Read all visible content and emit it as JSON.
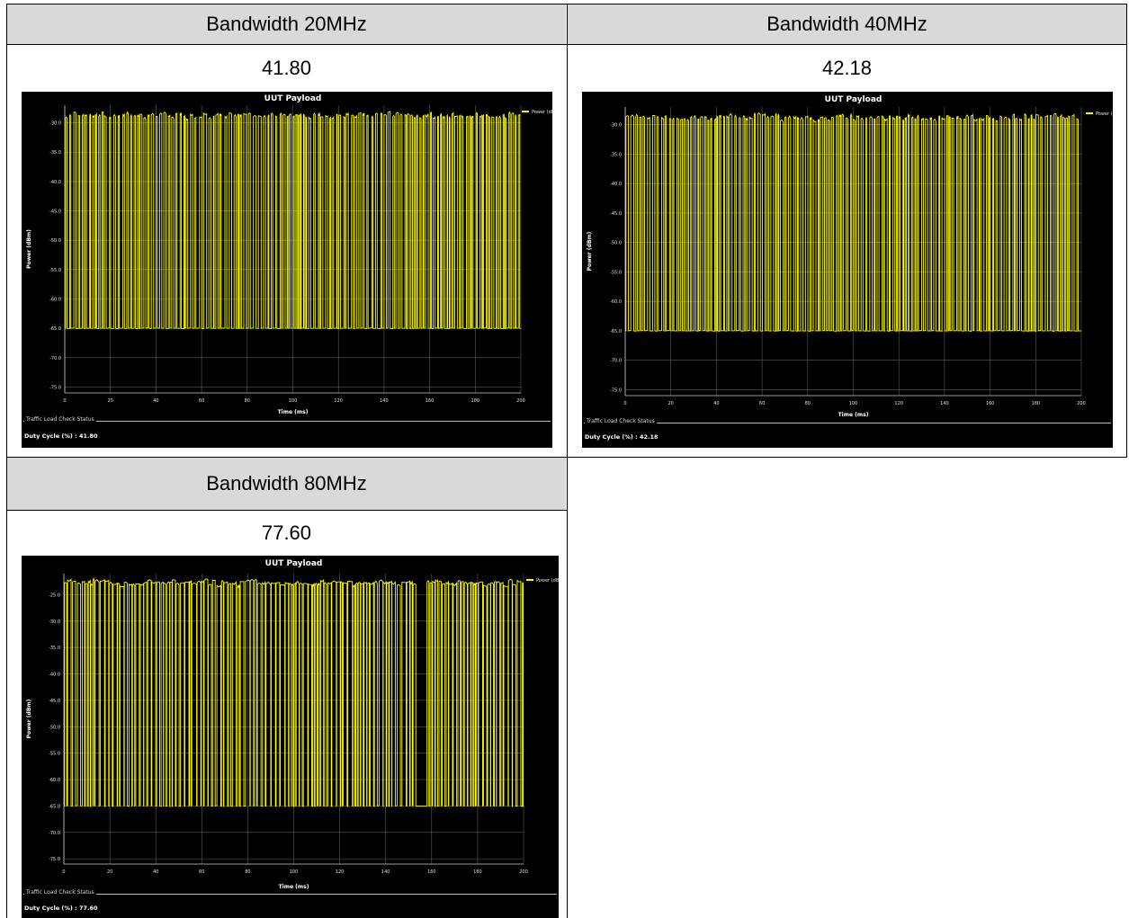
{
  "cells": [
    {
      "header": "Bandwidth 20MHz",
      "value": "41.80",
      "chart": {
        "title": "UUT Payload",
        "legend": "Power (dBm)",
        "ylabel": "Power (dBm)",
        "xlabel": "Time (ms)",
        "status_group": "Traffic Load Check Status",
        "duty_text": "Duty Cycle (%) : 41.80"
      }
    },
    {
      "header": "Bandwidth 40MHz",
      "value": "42.18",
      "chart": {
        "title": "UUT Payload",
        "legend": "Power (dBm)",
        "ylabel": "Power (dBm)",
        "xlabel": "Time (ms)",
        "status_group": "Traffic Load Check Status",
        "duty_text": "Duty Cycle (%) : 42.18"
      }
    },
    {
      "header": "Bandwidth 80MHz",
      "value": "77.60",
      "chart": {
        "title": "UUT Payload",
        "legend": "Power (dBm)",
        "ylabel": "Power (dBm)",
        "xlabel": "Time (ms)",
        "status_group": "Traffic Load Check Status",
        "duty_text": "Duty Cycle (%) : 77.60"
      }
    }
  ],
  "chart_data": [
    {
      "type": "line",
      "title": "UUT Payload",
      "xlabel": "Time (ms)",
      "ylabel": "Power (dBm)",
      "xlim": [
        0,
        200
      ],
      "ylim": [
        -76,
        -27
      ],
      "xticks": [
        0,
        20,
        40,
        60,
        80,
        100,
        120,
        140,
        160,
        180,
        200
      ],
      "yticks": [
        "-30.0",
        "-35.0",
        "-40.0",
        "-45.0",
        "-50.0",
        "-55.0",
        "-60.0",
        "-65.0",
        "-70.0",
        "-75.0"
      ],
      "series": [
        {
          "name": "Power (dBm)",
          "color": "#ffff00",
          "on_level": -29,
          "off_level": -65,
          "end_time": 200,
          "duty_cycle_percent": 41.8
        }
      ],
      "grid": true,
      "legend": "top-right"
    },
    {
      "type": "line",
      "title": "UUT Payload",
      "xlabel": "Time (ms)",
      "ylabel": "Power (dBm)",
      "xlim": [
        0,
        200
      ],
      "ylim": [
        -76,
        -27
      ],
      "xticks": [
        0,
        20,
        40,
        60,
        80,
        100,
        120,
        140,
        160,
        180,
        200
      ],
      "yticks": [
        "-30.0",
        "-35.0",
        "-40.0",
        "-45.0",
        "-50.0",
        "-55.0",
        "-60.0",
        "-65.0",
        "-70.0",
        "-75.0"
      ],
      "series": [
        {
          "name": "Power (dBm)",
          "color": "#ffff00",
          "on_level": -29,
          "off_level": -65,
          "end_time": 200,
          "duty_cycle_percent": 42.18
        }
      ],
      "grid": true,
      "legend": "top-right"
    },
    {
      "type": "line",
      "title": "UUT Payload",
      "xlabel": "Time (ms)",
      "ylabel": "Power (dBm)",
      "xlim": [
        0,
        200
      ],
      "ylim": [
        -76,
        -21
      ],
      "xticks": [
        0,
        20,
        40,
        60,
        80,
        100,
        120,
        140,
        160,
        180,
        200
      ],
      "yticks": [
        "-25.0",
        "-30.0",
        "-35.0",
        "-40.0",
        "-45.0",
        "-50.0",
        "-55.0",
        "-60.0",
        "-65.0",
        "-70.0",
        "-75.0"
      ],
      "series": [
        {
          "name": "Power (dBm)",
          "color": "#ffff00",
          "on_level": -23,
          "off_level": -65,
          "end_time": 200,
          "gap_start": 153,
          "gap_end": 158,
          "duty_cycle_percent": 77.6
        }
      ],
      "grid": true,
      "legend": "top-right"
    }
  ]
}
